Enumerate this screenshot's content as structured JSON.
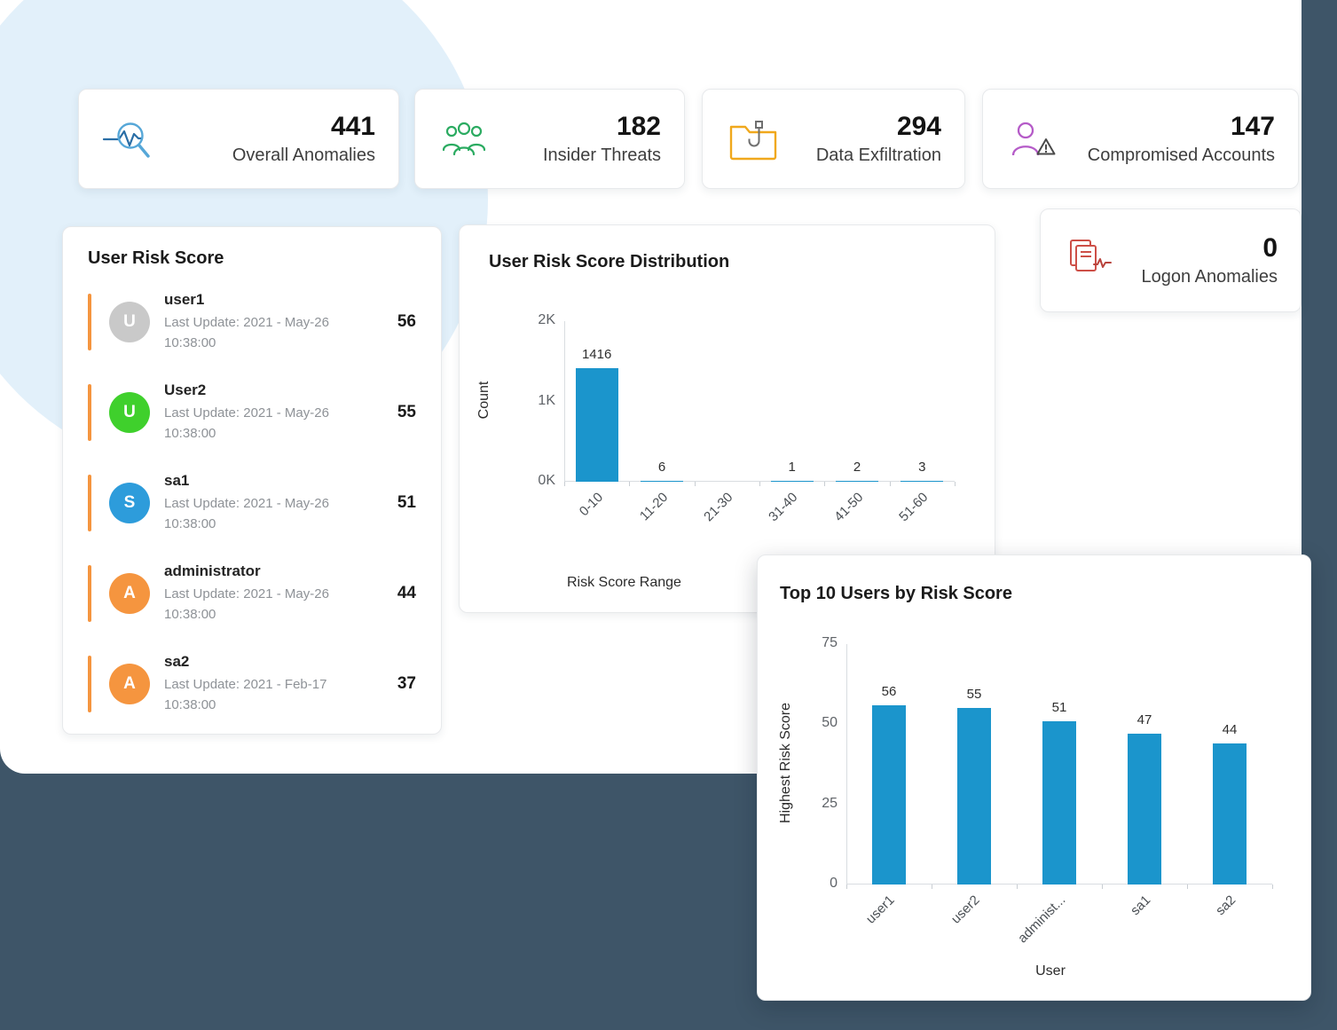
{
  "background": {
    "page_color": "#3e5568",
    "panel_color": "#ffffff",
    "blob_color": "#e2f0fa"
  },
  "stat_cards": [
    {
      "value": "441",
      "label": "Overall Anomalies",
      "icon": "anomaly-search-icon"
    },
    {
      "value": "182",
      "label": "Insider Threats",
      "icon": "insider-people-icon"
    },
    {
      "value": "294",
      "label": "Data Exfiltration",
      "icon": "folder-hook-icon"
    },
    {
      "value": "147",
      "label": "Compromised Accounts",
      "icon": "user-warning-icon"
    }
  ],
  "logon_card": {
    "value": "0",
    "label": "Logon Anomalies",
    "icon": "documents-pulse-icon"
  },
  "user_risk_card": {
    "title": "User Risk Score",
    "accent_color": "#f5953f",
    "users": [
      {
        "name": "user1",
        "initial": "U",
        "avatar_color": "#c9c9c9",
        "last_update": "Last Update: 2021 - May-26 10:38:00",
        "score": "56"
      },
      {
        "name": "User2",
        "initial": "U",
        "avatar_color": "#3fd02c",
        "last_update": "Last Update: 2021 - May-26 10:38:00",
        "score": "55"
      },
      {
        "name": "sa1",
        "initial": "S",
        "avatar_color": "#2d9cdb",
        "last_update": "Last Update: 2021 - May-26 10:38:00",
        "score": "51"
      },
      {
        "name": "administrator",
        "initial": "A",
        "avatar_color": "#f5953f",
        "last_update": "Last Update: 2021 - May-26 10:38:00",
        "score": "44"
      },
      {
        "name": "sa2",
        "initial": "A",
        "avatar_color": "#f5953f",
        "last_update": "Last Update: 2021 - Feb-17 10:38:00",
        "score": "37"
      }
    ]
  },
  "chart_data": [
    {
      "type": "bar",
      "title": "User Risk Score Distribution",
      "categories": [
        "0-10",
        "11-20",
        "21-30",
        "31-40",
        "41-50",
        "51-60"
      ],
      "values": [
        1416,
        6,
        0,
        1,
        2,
        3
      ],
      "bar_labels": [
        "1416",
        "6",
        "",
        "1",
        "2",
        "3"
      ],
      "xlabel": "Risk Score Range",
      "ylabel": "Count",
      "yticks": [
        "0K",
        "1K",
        "2K"
      ],
      "ylim": [
        0,
        2000
      ],
      "bar_color": "#1b95cc",
      "legend": "none",
      "grid": "off"
    },
    {
      "type": "bar",
      "title": "Top 10 Users by Risk Score",
      "categories": [
        "user1",
        "user2",
        "administ...",
        "sa1",
        "sa2"
      ],
      "values": [
        56,
        55,
        51,
        47,
        44
      ],
      "bar_labels": [
        "56",
        "55",
        "51",
        "47",
        "44"
      ],
      "xlabel": "User",
      "ylabel": "Highest Risk Score",
      "yticks": [
        "0",
        "25",
        "50",
        "75"
      ],
      "ylim": [
        0,
        75
      ],
      "bar_color": "#1b95cc",
      "legend": "none",
      "grid": "off"
    }
  ]
}
